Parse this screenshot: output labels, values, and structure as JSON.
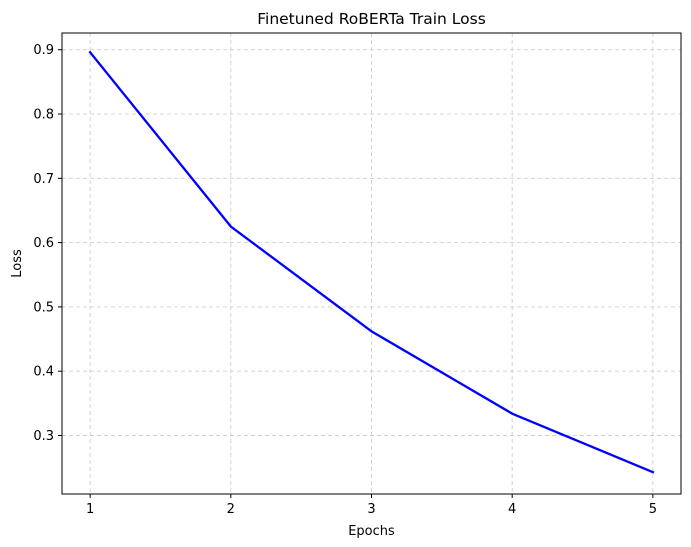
{
  "chart_data": {
    "type": "line",
    "title": "Finetuned RoBERTa Train Loss",
    "xlabel": "Epochs",
    "ylabel": "Loss",
    "x": [
      1,
      2,
      3,
      4,
      5
    ],
    "xticks": [
      "1",
      "2",
      "3",
      "4",
      "5"
    ],
    "yticks": [
      "0.3",
      "0.4",
      "0.5",
      "0.6",
      "0.7",
      "0.8",
      "0.9"
    ],
    "xlim": [
      0.8,
      5.2
    ],
    "ylim": [
      0.209,
      0.926
    ],
    "grid": true,
    "series": [
      {
        "values": [
          0.896,
          0.625,
          0.462,
          0.334,
          0.243
        ],
        "color": "#0000ff"
      }
    ]
  }
}
